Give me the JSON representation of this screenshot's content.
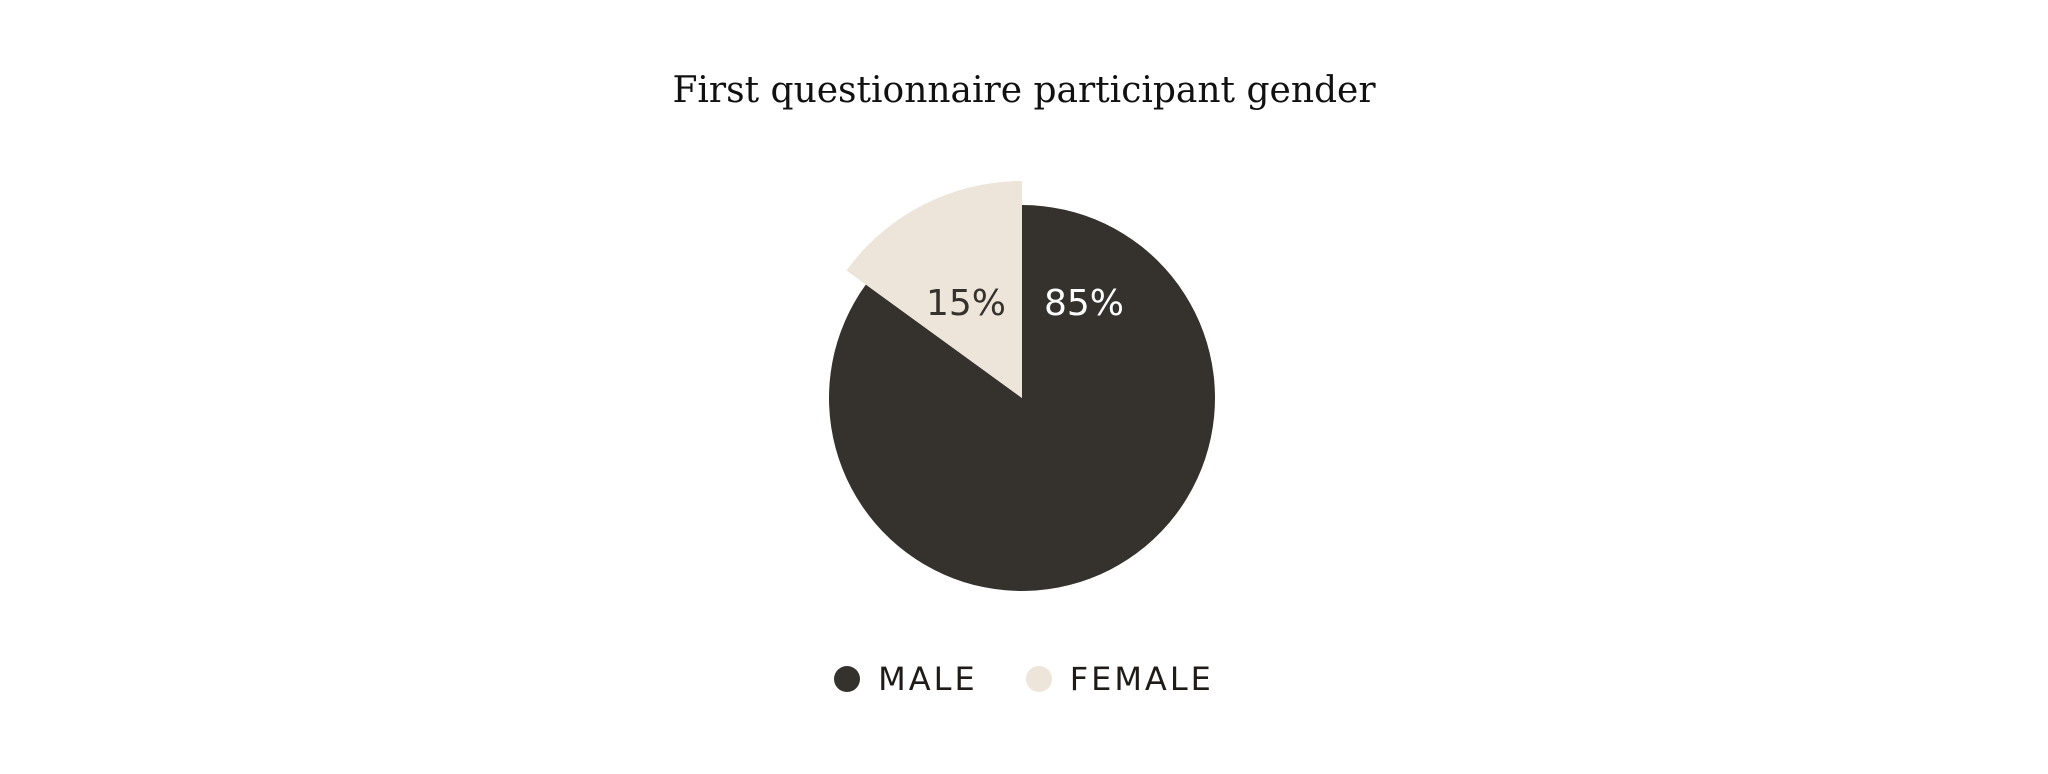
{
  "chart_data": {
    "type": "pie",
    "title": "First questionnaire participant gender",
    "slices": [
      {
        "name": "MALE",
        "value": 85,
        "label": "85%",
        "color": "#35322e",
        "label_color": "#ffffff"
      },
      {
        "name": "FEMALE",
        "value": 15,
        "label": "15%",
        "color": "#ede5da",
        "label_color": "#35322e"
      }
    ],
    "legend": "bottom"
  }
}
